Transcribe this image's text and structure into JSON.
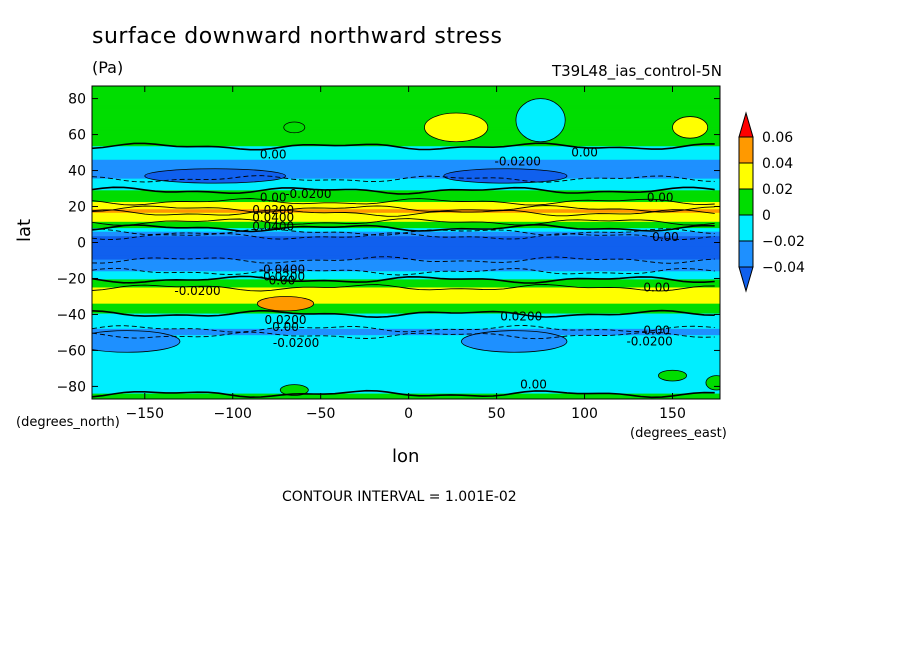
{
  "header": {
    "title": "surface downward northward stress",
    "units": "(Pa)",
    "run_id": "T39L48_ias_control-5N"
  },
  "footer": {
    "contour_interval": "CONTOUR INTERVAL = 1.001E-02"
  },
  "chart_data": {
    "type": "heatmap",
    "title": "surface downward northward stress",
    "xlabel": "lon",
    "ylabel": "lat",
    "x_unit_caption": "(degrees_east)",
    "y_unit_caption": "(degrees_north)",
    "xlim": [
      -180,
      177
    ],
    "ylim": [
      -87,
      87
    ],
    "x_ticks": [
      -150,
      -100,
      -50,
      0,
      50,
      100,
      150
    ],
    "y_ticks": [
      -80,
      -60,
      -40,
      -20,
      0,
      20,
      40,
      60,
      80
    ],
    "x_tick_labels": [
      "−150",
      "−100",
      "−50",
      "0",
      "50",
      "100",
      "150"
    ],
    "y_tick_labels": [
      "−80",
      "−60",
      "−40",
      "−20",
      "0",
      "20",
      "40",
      "60",
      "80"
    ],
    "colorbar": {
      "labels": [
        "0.06",
        "0.04",
        "0.02",
        "0",
        "−0.02",
        "−0.04"
      ],
      "colors": [
        "#ff0000",
        "#ff9900",
        "#ffff00",
        "#00dd00",
        "#00eeff",
        "#1e90ff",
        "#1060ee"
      ]
    },
    "zonal_profile": {
      "lat": [
        87,
        70,
        62,
        55,
        50,
        46,
        42,
        38,
        34,
        30,
        26,
        22,
        18,
        14,
        10,
        7,
        5,
        2,
        -2,
        -8,
        -14,
        -18,
        -22,
        -26,
        -30,
        -34,
        -38,
        -42,
        -46,
        -50,
        -55,
        -60,
        -70,
        -80,
        -87
      ],
      "value": [
        0.005,
        0.008,
        0.012,
        0.004,
        -0.008,
        -0.02,
        -0.034,
        -0.028,
        -0.016,
        -0.004,
        0.01,
        0.022,
        0.044,
        0.034,
        0.012,
        -0.006,
        -0.03,
        -0.05,
        -0.05,
        -0.044,
        -0.03,
        -0.012,
        0.006,
        0.024,
        0.03,
        0.02,
        0.006,
        -0.008,
        -0.018,
        -0.022,
        -0.016,
        -0.012,
        -0.01,
        -0.006,
        0.004
      ]
    },
    "contour_labels": [
      {
        "text": "0.00",
        "lon": -77,
        "lat": 49
      },
      {
        "text": "0.00",
        "lon": 100,
        "lat": 50
      },
      {
        "text": "-0.0200",
        "lon": 62,
        "lat": 45
      },
      {
        "text": "-0.0200",
        "lon": -57,
        "lat": 27
      },
      {
        "text": "0.00",
        "lon": -77,
        "lat": 25
      },
      {
        "text": "0.0200",
        "lon": -77,
        "lat": 18
      },
      {
        "text": "0.0400",
        "lon": -77,
        "lat": 14
      },
      {
        "text": "0.0400",
        "lon": -77,
        "lat": 9
      },
      {
        "text": "0.00",
        "lon": 143,
        "lat": 25
      },
      {
        "text": "0.00",
        "lon": 146,
        "lat": 3
      },
      {
        "text": "-0.0400",
        "lon": -72,
        "lat": -15
      },
      {
        "text": "-0.0200",
        "lon": -72,
        "lat": -19
      },
      {
        "text": "0.00",
        "lon": -72,
        "lat": -21
      },
      {
        "text": "-0.0200",
        "lon": -120,
        "lat": -27
      },
      {
        "text": "0.0200",
        "lon": -70,
        "lat": -43
      },
      {
        "text": "0.00",
        "lon": -70,
        "lat": -47
      },
      {
        "text": "-0.0200",
        "lon": -64,
        "lat": -56
      },
      {
        "text": "0.0200",
        "lon": 64,
        "lat": -41
      },
      {
        "text": "0.00",
        "lon": 141,
        "lat": -25
      },
      {
        "text": "0.00",
        "lon": 141,
        "lat": -49
      },
      {
        "text": "-0.0200",
        "lon": 137,
        "lat": -55
      },
      {
        "text": "0.00",
        "lon": 71,
        "lat": -79
      }
    ]
  }
}
